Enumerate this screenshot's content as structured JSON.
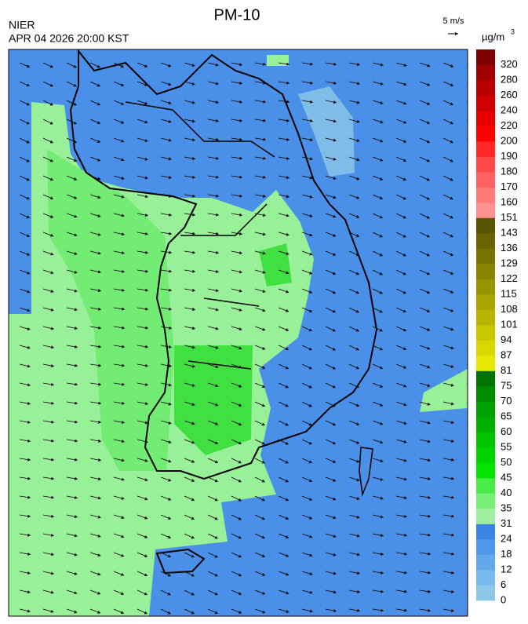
{
  "header": {
    "title": "PM-10",
    "source": "NIER",
    "datetime": "APR 04 2026 20:00 KST",
    "wind_scale": "5 m/s",
    "unit": "µg/m",
    "unit_power": "3"
  },
  "colorbar": {
    "ticks": [
      0,
      6,
      12,
      18,
      24,
      31,
      35,
      40,
      45,
      50,
      55,
      60,
      65,
      70,
      75,
      81,
      87,
      94,
      101,
      108,
      115,
      122,
      129,
      136,
      143,
      151,
      160,
      170,
      180,
      190,
      200,
      220,
      240,
      260,
      280,
      320
    ],
    "colors": [
      "#8cc8e6",
      "#78b8ec",
      "#64a8ec",
      "#5098ec",
      "#3c84e4",
      "#a0f0a0",
      "#78f078",
      "#48ec48",
      "#00e400",
      "#00d400",
      "#00c400",
      "#00b000",
      "#00a000",
      "#008c00",
      "#007400",
      "#e8e800",
      "#d8d800",
      "#c8c800",
      "#b8b400",
      "#a8a400",
      "#989400",
      "#888400",
      "#787400",
      "#686400",
      "#585400",
      "#ff9090",
      "#ff7878",
      "#ff6060",
      "#ff4848",
      "#ff2828",
      "#ff0000",
      "#e80000",
      "#d00000",
      "#b80000",
      "#a00000",
      "#800000"
    ]
  }
}
